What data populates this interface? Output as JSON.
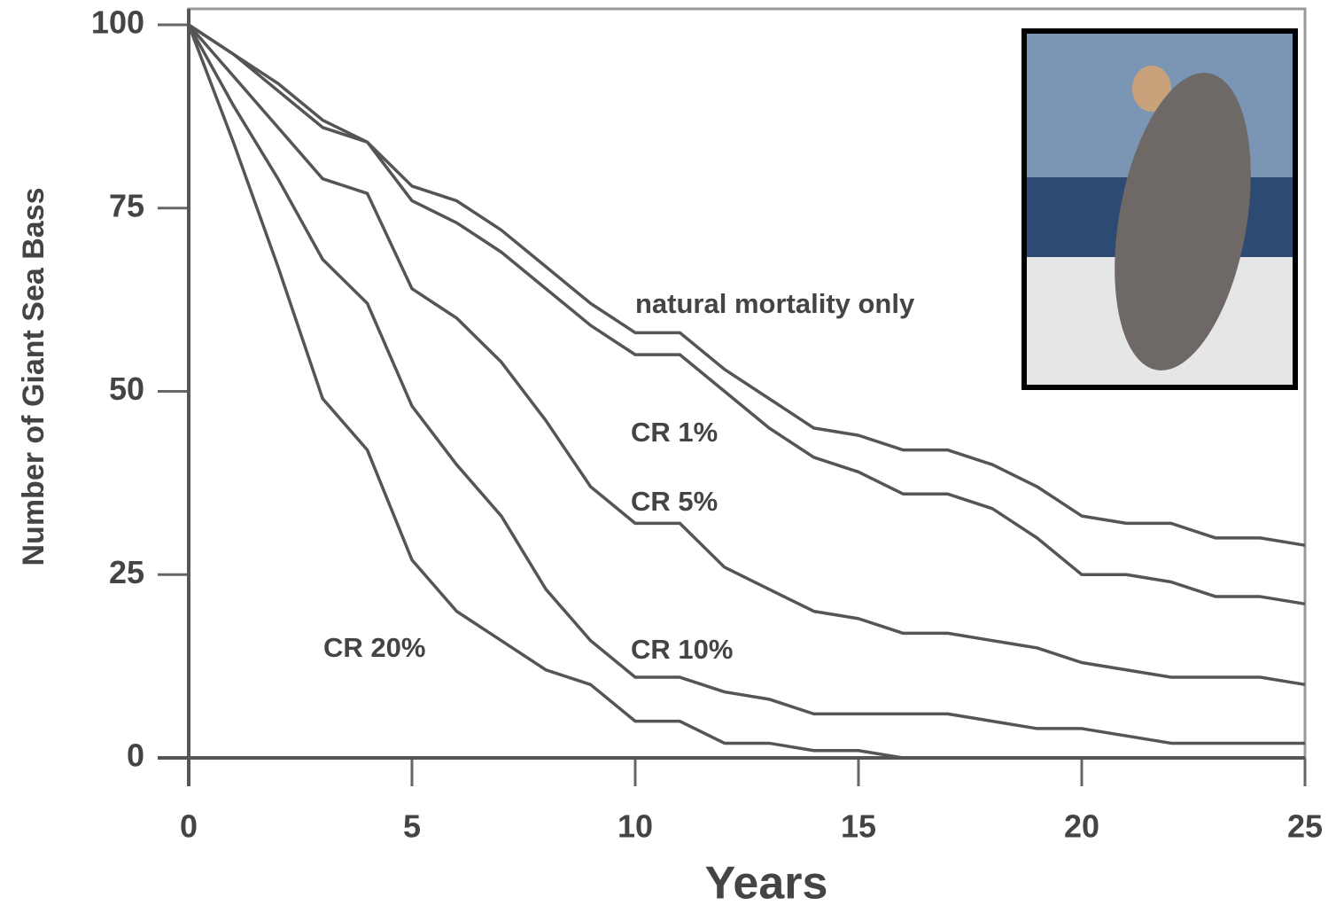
{
  "chart_data": {
    "type": "line",
    "xlabel": "Years",
    "ylabel": "Number of Giant Sea Bass",
    "x": [
      0,
      1,
      2,
      3,
      4,
      5,
      6,
      7,
      8,
      9,
      10,
      11,
      12,
      13,
      14,
      15,
      16,
      17,
      18,
      19,
      20,
      21,
      22,
      23,
      24,
      25
    ],
    "xlim": [
      0,
      25
    ],
    "xticks": [
      0,
      5,
      10,
      15,
      20,
      25
    ],
    "ylim": [
      0,
      100
    ],
    "yticks": [
      0,
      25,
      50,
      75,
      100
    ],
    "series": [
      {
        "name": "natural mortality only",
        "color": "#555555",
        "values": [
          100,
          96,
          92,
          87,
          84,
          78,
          76,
          72,
          67,
          62,
          58,
          58,
          53,
          49,
          45,
          44,
          42,
          42,
          40,
          37,
          33,
          32,
          32,
          30,
          30,
          29
        ]
      },
      {
        "name": "CR 1%",
        "color": "#555555",
        "values": [
          100,
          96,
          91,
          86,
          84,
          76,
          73,
          69,
          64,
          59,
          55,
          55,
          50,
          45,
          41,
          39,
          36,
          36,
          34,
          30,
          25,
          25,
          24,
          22,
          22,
          21
        ]
      },
      {
        "name": "CR 5%",
        "color": "#555555",
        "values": [
          100,
          93,
          86,
          79,
          77,
          64,
          60,
          54,
          46,
          37,
          32,
          32,
          26,
          23,
          20,
          19,
          17,
          17,
          16,
          15,
          13,
          12,
          11,
          11,
          11,
          10
        ]
      },
      {
        "name": "CR 10%",
        "color": "#555555",
        "values": [
          100,
          89,
          79,
          68,
          62,
          48,
          40,
          33,
          23,
          16,
          11,
          11,
          9,
          8,
          6,
          6,
          6,
          6,
          5,
          4,
          4,
          3,
          2,
          2,
          2,
          2
        ]
      },
      {
        "name": "CR 20%",
        "color": "#555555",
        "values": [
          100,
          84,
          67,
          49,
          42,
          27,
          20,
          16,
          12,
          10,
          5,
          5,
          2,
          2,
          1,
          1,
          0,
          null,
          null,
          null,
          null,
          null,
          null,
          null,
          null,
          null
        ]
      }
    ]
  }
}
